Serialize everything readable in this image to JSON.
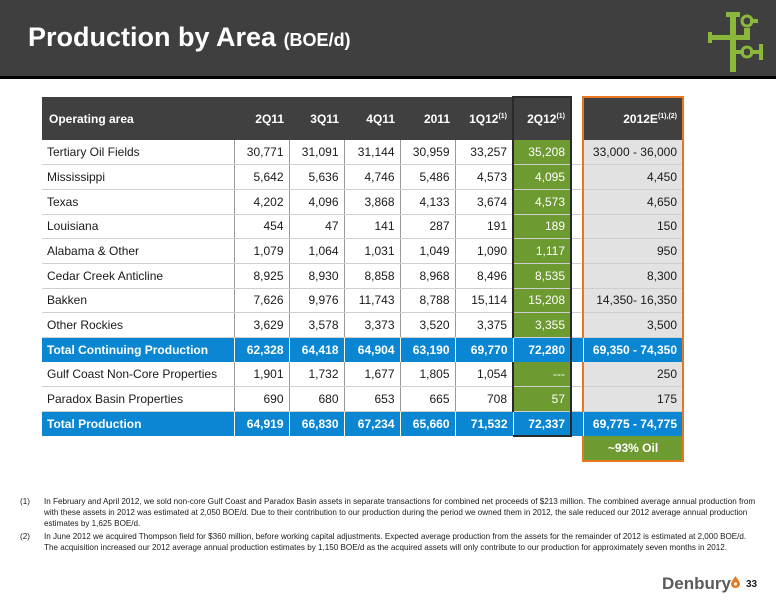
{
  "slide": {
    "title": "Production by Area",
    "title_unit": "(BOE/d)",
    "page_number": "33",
    "brand": "Denbury",
    "colors": {
      "header_bg": "#3f3f3f",
      "total_row": "#0a86d2",
      "q2_highlight": "#6e9a32",
      "estimate_border": "#e87722",
      "estimate_bg": "#e2e2e2"
    }
  },
  "table": {
    "headers": {
      "area": "Operating area",
      "c1": "2Q11",
      "c2": "3Q11",
      "c3": "4Q11",
      "c4": "2011",
      "c5": "1Q12",
      "c5_sup": "(1)",
      "c6": "2Q12",
      "c6_sup": "(1)",
      "c7": "2012E",
      "c7_sup": "(1),(2)"
    },
    "rows": [
      {
        "area": "Tertiary Oil Fields",
        "c1": "30,771",
        "c2": "31,091",
        "c3": "31,144",
        "c4": "30,959",
        "c5": "33,257",
        "c6": "35,208",
        "c7": "33,000 - 36,000"
      },
      {
        "area": "Mississippi",
        "c1": "5,642",
        "c2": "5,636",
        "c3": "4,746",
        "c4": "5,486",
        "c5": "4,573",
        "c6": "4,095",
        "c7": "4,450"
      },
      {
        "area": "Texas",
        "c1": "4,202",
        "c2": "4,096",
        "c3": "3,868",
        "c4": "4,133",
        "c5": "3,674",
        "c6": "4,573",
        "c7": "4,650"
      },
      {
        "area": "Louisiana",
        "c1": "454",
        "c2": "47",
        "c3": "141",
        "c4": "287",
        "c5": "191",
        "c6": "189",
        "c7": "150"
      },
      {
        "area": "Alabama & Other",
        "c1": "1,079",
        "c2": "1,064",
        "c3": "1,031",
        "c4": "1,049",
        "c5": "1,090",
        "c6": "1,117",
        "c7": "950"
      },
      {
        "area": "Cedar Creek Anticline",
        "c1": "8,925",
        "c2": "8,930",
        "c3": "8,858",
        "c4": "8,968",
        "c5": "8,496",
        "c6": "8,535",
        "c7": "8,300"
      },
      {
        "area": "Bakken",
        "c1": "7,626",
        "c2": "9,976",
        "c3": "11,743",
        "c4": "8,788",
        "c5": "15,114",
        "c6": "15,208",
        "c7": "14,350- 16,350"
      },
      {
        "area": "Other Rockies",
        "c1": "3,629",
        "c2": "3,578",
        "c3": "3,373",
        "c4": "3,520",
        "c5": "3,375",
        "c6": "3,355",
        "c7": "3,500"
      },
      {
        "area": "Total Continuing Production",
        "c1": "62,328",
        "c2": "64,418",
        "c3": "64,904",
        "c4": "63,190",
        "c5": "69,770",
        "c6": "72,280",
        "c7": "69,350 - 74,350",
        "total": true
      },
      {
        "area": "Gulf Coast Non-Core Properties",
        "c1": "1,901",
        "c2": "1,732",
        "c3": "1,677",
        "c4": "1,805",
        "c5": "1,054",
        "c6": "---",
        "c7": "250"
      },
      {
        "area": "Paradox Basin Properties",
        "c1": "690",
        "c2": "680",
        "c3": "653",
        "c4": "665",
        "c5": "708",
        "c6": "57",
        "c7": "175"
      },
      {
        "area": "Total Production",
        "c1": "64,919",
        "c2": "66,830",
        "c3": "67,234",
        "c4": "65,660",
        "c5": "71,532",
        "c6": "72,337",
        "c7": "69,775 - 74,775",
        "total": true
      }
    ],
    "oil_note": "~93% Oil"
  },
  "notes": [
    {
      "num": "(1)",
      "text": "In February and April 2012, we sold non-core Gulf Coast and Paradox Basin assets in separate transactions for combined net proceeds of $213 million.  The combined average annual production from with these assets in 2012 was estimated at 2,050 BOE/d.  Due to their contribution to our production during the period we owned them in 2012, the sale reduced our 2012 average annual production estimates by 1,625 BOE/d."
    },
    {
      "num": "(2)",
      "text": "In June 2012 we acquired Thompson field for $360 million, before working capital adjustments. Expected average production from the assets for the remainder of 2012 is estimated at 2,000 BOE/d.  The acquisition increased our 2012 average annual production estimates by 1,150 BOE/d as the acquired assets will only contribute to our production for approximately seven months in 2012."
    }
  ]
}
